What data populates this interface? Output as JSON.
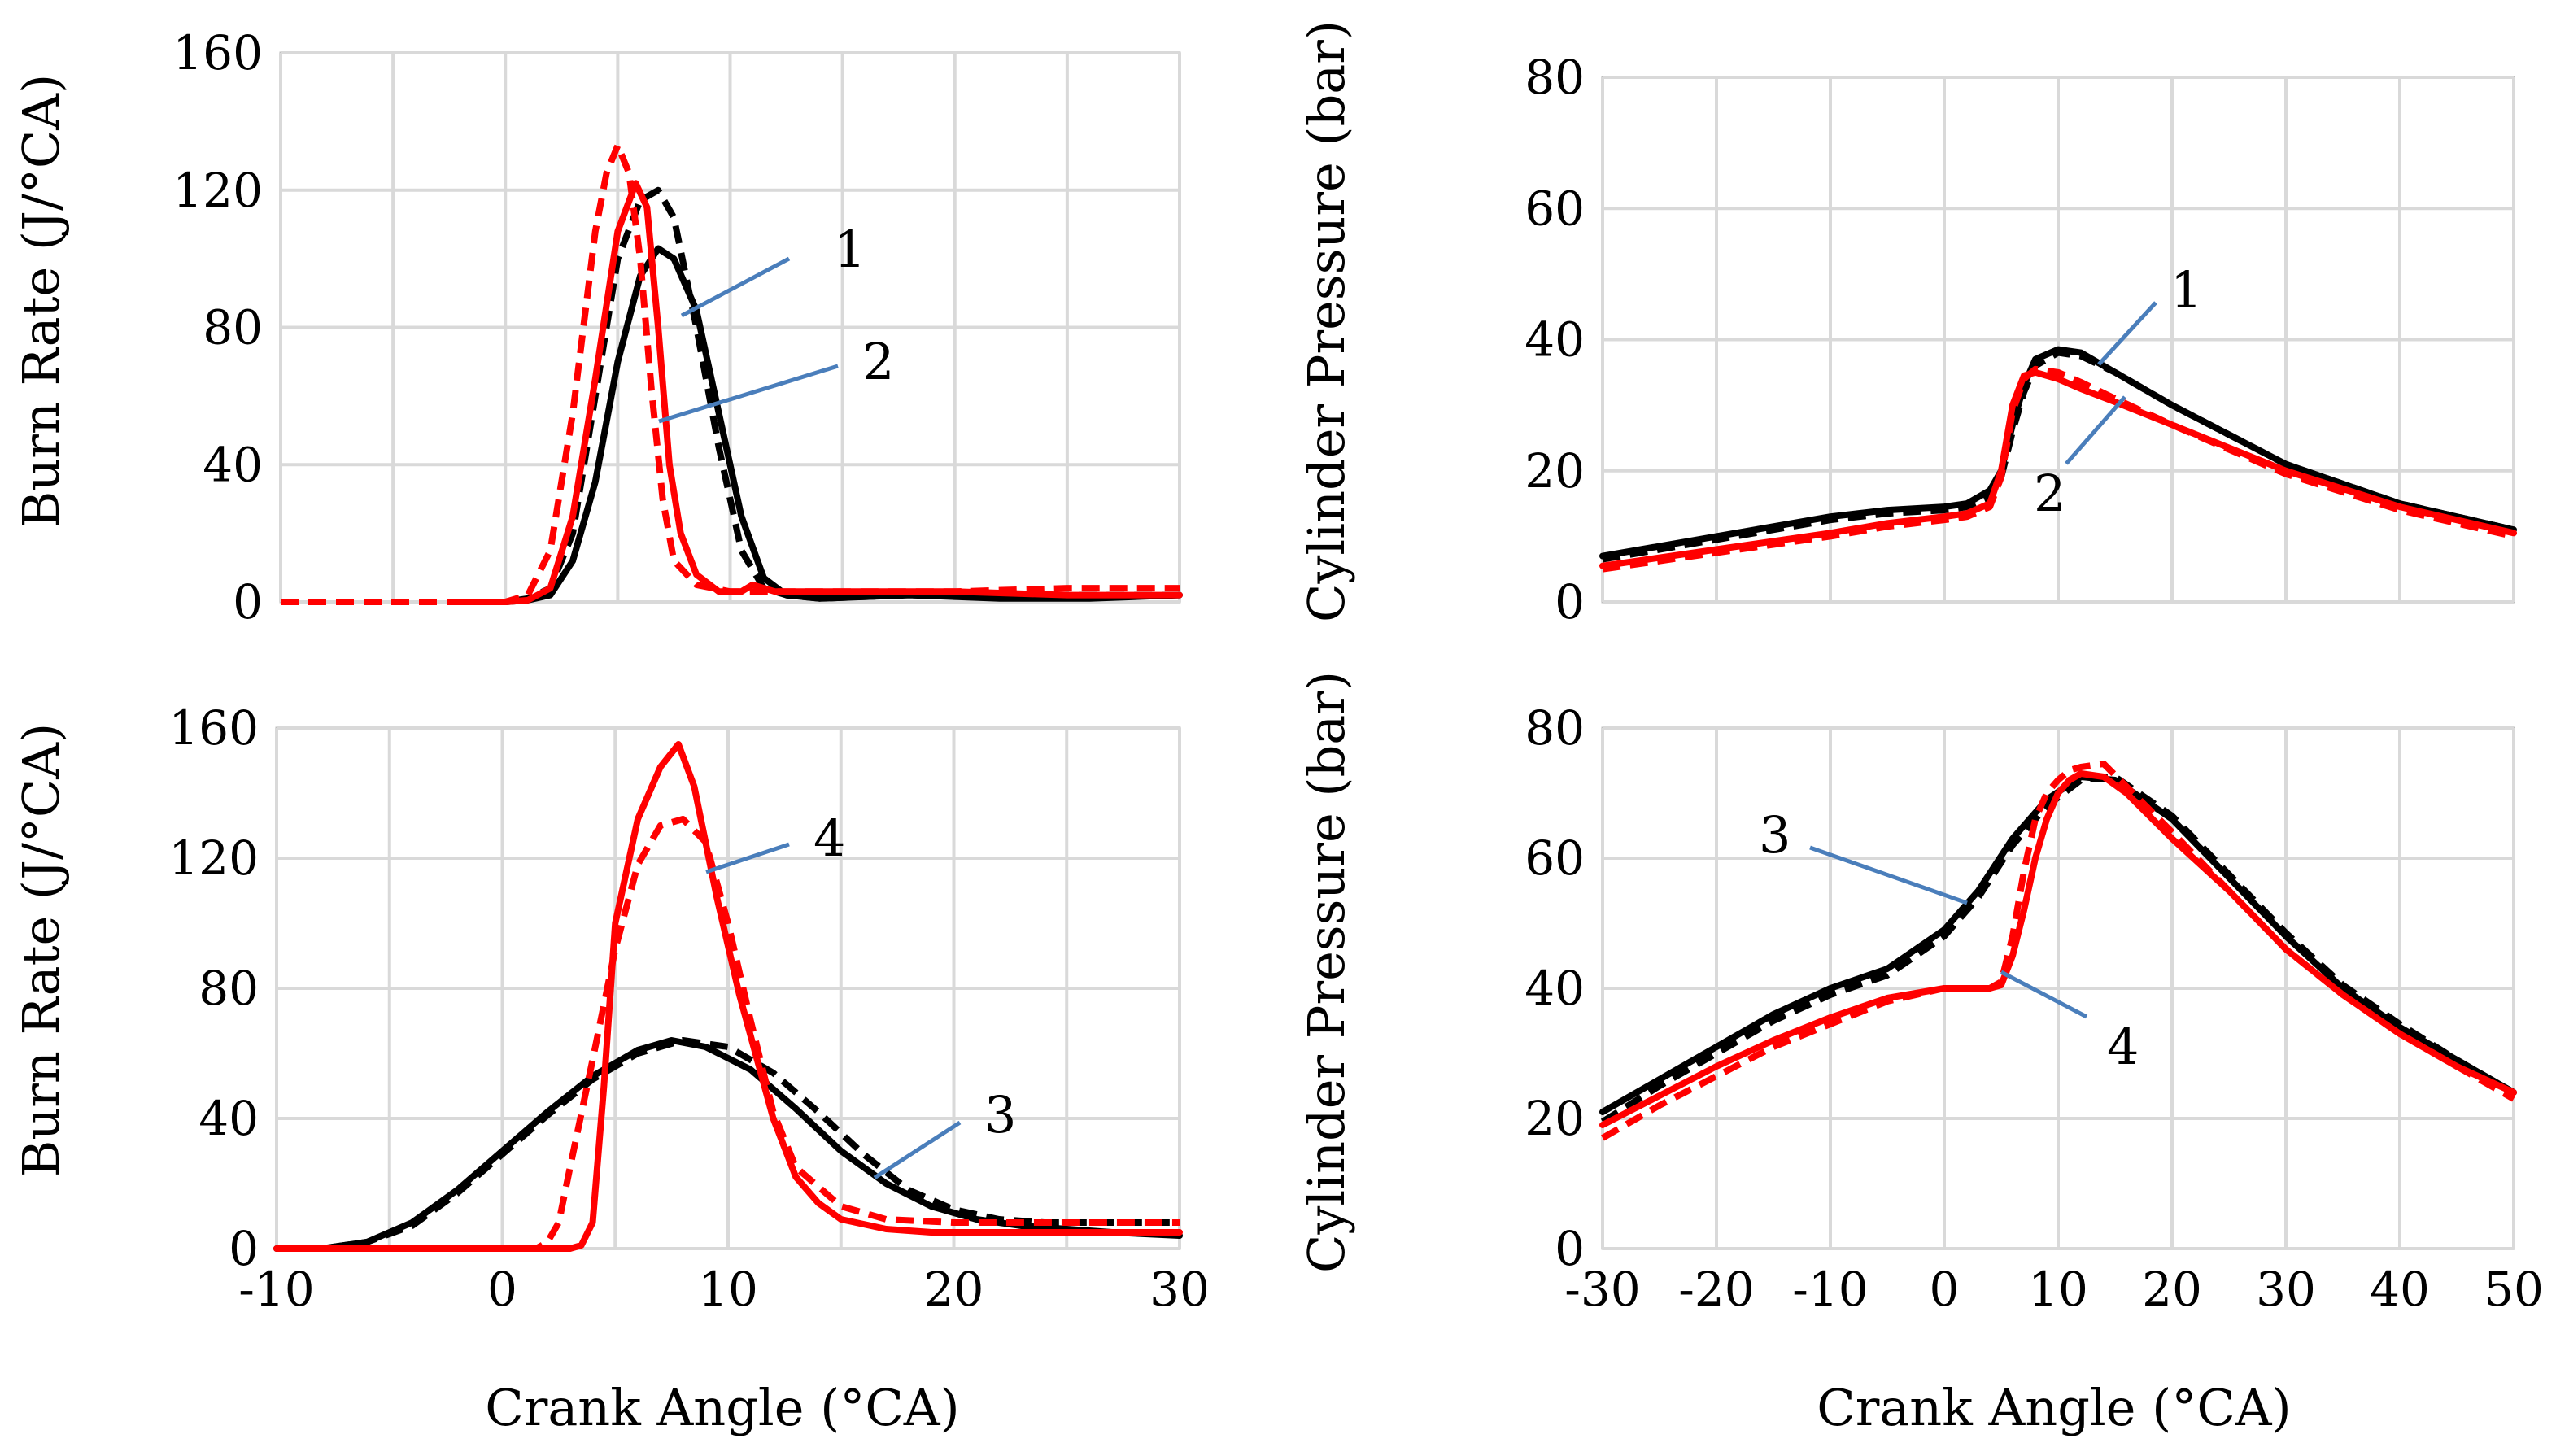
{
  "chart_data": [
    {
      "type": "line",
      "panel": "top-left",
      "xlabel": "",
      "ylabel": "Burn Rate (J/°CA)",
      "xlim": [
        -10,
        30
      ],
      "ylim": [
        0,
        160
      ],
      "xticks": [],
      "yticks": [
        "0",
        "40",
        "80",
        "120",
        "160"
      ],
      "grid": true,
      "series": [
        {
          "color": "#000000",
          "dash": "solid",
          "x": [
            -2,
            0,
            1,
            2,
            3,
            4,
            5,
            6,
            6.8,
            7.5,
            8.5,
            9.5,
            10.5,
            11.5,
            12.5,
            14,
            18,
            22,
            26,
            30
          ],
          "y": [
            0,
            0,
            0.5,
            2,
            12,
            35,
            70,
            95,
            103,
            100,
            85,
            55,
            25,
            7,
            2,
            1,
            2,
            1,
            1,
            2
          ]
        },
        {
          "color": "#000000",
          "dash": "dashed",
          "x": [
            -2,
            0,
            1,
            2,
            3,
            4,
            5,
            6,
            6.8,
            7.5,
            8.5,
            9.5,
            10.5,
            11.5,
            12.5,
            14,
            18,
            22,
            26,
            30
          ],
          "y": [
            0,
            0,
            1,
            4,
            20,
            60,
            100,
            117,
            120,
            112,
            80,
            45,
            15,
            4,
            2,
            1,
            2,
            2,
            2,
            2
          ]
        },
        {
          "color": "#ff0000",
          "dash": "solid",
          "x": [
            -2,
            0,
            1,
            2,
            3,
            4,
            5,
            5.8,
            6.3,
            6.8,
            7.3,
            7.8,
            8.5,
            9.5,
            10.5,
            11,
            12,
            15,
            20,
            25,
            30
          ],
          "y": [
            0,
            0,
            0.5,
            4,
            25,
            65,
            108,
            122,
            115,
            80,
            40,
            20,
            8,
            3,
            3,
            5,
            3,
            3,
            3,
            2,
            2
          ]
        },
        {
          "color": "#ff0000",
          "dash": "dashed",
          "x": [
            -10,
            -2,
            0,
            1,
            2,
            3,
            4,
            4.5,
            5,
            5.5,
            6,
            6.5,
            7,
            7.5,
            8.5,
            10,
            15,
            20,
            25,
            30
          ],
          "y": [
            0,
            0,
            0,
            2,
            15,
            55,
            108,
            125,
            133,
            125,
            100,
            62,
            30,
            12,
            5,
            3,
            3,
            3,
            4,
            4
          ]
        }
      ],
      "annotations": [
        "1",
        "2"
      ]
    },
    {
      "type": "line",
      "panel": "top-right",
      "xlabel": "",
      "ylabel": "Cylinder Pressure (bar)",
      "xlim": [
        -30,
        50
      ],
      "ylim": [
        0,
        80
      ],
      "xticks": [],
      "yticks": [
        "0",
        "20",
        "40",
        "60",
        "80"
      ],
      "grid": true,
      "series": [
        {
          "color": "#000000",
          "dash": "solid",
          "x": [
            -30,
            -20,
            -10,
            -5,
            0,
            2,
            4,
            5,
            6,
            7,
            8,
            10,
            12,
            15,
            20,
            30,
            40,
            50
          ],
          "y": [
            7,
            10,
            13,
            14,
            14.5,
            15,
            17,
            20,
            27,
            33,
            37,
            38.5,
            38,
            35,
            30,
            21,
            15,
            11
          ]
        },
        {
          "color": "#000000",
          "dash": "dashed",
          "x": [
            -30,
            -20,
            -10,
            -5,
            0,
            2,
            4,
            5,
            6,
            7,
            8,
            10,
            12,
            15,
            20,
            30,
            40,
            50
          ],
          "y": [
            6.5,
            9.5,
            12.5,
            13.5,
            14,
            14.5,
            16,
            19,
            26,
            32,
            36,
            38,
            37.5,
            35,
            30,
            21,
            15,
            11
          ]
        },
        {
          "color": "#ff0000",
          "dash": "solid",
          "x": [
            -30,
            -20,
            -10,
            -5,
            0,
            2,
            4,
            5,
            6,
            7,
            8,
            10,
            12,
            15,
            20,
            30,
            40,
            50
          ],
          "y": [
            5.5,
            8,
            10.5,
            12,
            13,
            13.5,
            15,
            20,
            30,
            34.5,
            35,
            34,
            32.5,
            30.5,
            27,
            20,
            14.5,
            10.5
          ]
        },
        {
          "color": "#ff0000",
          "dash": "dashed",
          "x": [
            -30,
            -20,
            -10,
            -5,
            0,
            2,
            4,
            5,
            6,
            7,
            8,
            10,
            12,
            15,
            20,
            30,
            40,
            50
          ],
          "y": [
            5,
            7.5,
            10,
            11.5,
            12.5,
            13,
            14.5,
            19,
            29,
            34,
            35.5,
            35,
            33.5,
            31,
            27,
            19.5,
            14,
            10
          ]
        }
      ],
      "annotations": [
        "1",
        "2"
      ]
    },
    {
      "type": "line",
      "panel": "bottom-left",
      "xlabel": "Crank Angle (°CA)",
      "ylabel": "Burn Rate (J/°CA)",
      "xlim": [
        -10,
        30
      ],
      "ylim": [
        0,
        160
      ],
      "xticks": [
        "-10",
        "0",
        "10",
        "20",
        "30"
      ],
      "yticks": [
        "0",
        "40",
        "80",
        "120",
        "160"
      ],
      "grid": true,
      "series": [
        {
          "color": "#000000",
          "dash": "solid",
          "x": [
            -10,
            -8,
            -6,
            -4,
            -2,
            0,
            2,
            4,
            6,
            7.5,
            9,
            11,
            13,
            15,
            17,
            19,
            21,
            23,
            25,
            27,
            30
          ],
          "y": [
            0,
            0,
            2,
            8,
            18,
            30,
            42,
            53,
            61,
            64,
            62,
            55,
            43,
            30,
            20,
            13,
            9,
            7,
            6,
            5,
            4
          ]
        },
        {
          "color": "#000000",
          "dash": "dashed",
          "x": [
            -10,
            -8,
            -6,
            -4,
            -2,
            0,
            2,
            4,
            6,
            8,
            10,
            12,
            14,
            16,
            18,
            20,
            22,
            24,
            26,
            28,
            30
          ],
          "y": [
            0,
            0,
            2,
            7,
            17,
            29,
            41,
            52,
            60,
            64,
            62,
            54,
            42,
            29,
            18,
            12,
            9,
            8,
            8,
            8,
            8
          ]
        },
        {
          "color": "#ff0000",
          "dash": "solid",
          "x": [
            -10,
            2,
            3,
            3.5,
            4,
            4.5,
            5,
            6,
            7,
            7.8,
            8.5,
            9.5,
            10.5,
            12,
            13,
            14,
            15,
            17,
            19,
            22,
            25,
            30
          ],
          "y": [
            0,
            0,
            0,
            1,
            8,
            50,
            100,
            132,
            148,
            155,
            142,
            108,
            78,
            40,
            22,
            14,
            9,
            6,
            5,
            5,
            5,
            5
          ]
        },
        {
          "color": "#ff0000",
          "dash": "dashed",
          "x": [
            -10,
            -6,
            0,
            1.5,
            2,
            2.5,
            3,
            4,
            5,
            6,
            7,
            8,
            9,
            10,
            11,
            12,
            13,
            15,
            17,
            20,
            25,
            30
          ],
          "y": [
            0,
            0,
            0,
            0,
            2,
            8,
            25,
            58,
            92,
            118,
            130,
            132,
            125,
            100,
            70,
            42,
            25,
            13,
            9,
            8,
            8,
            8
          ]
        }
      ],
      "annotations": [
        "3",
        "4"
      ]
    },
    {
      "type": "line",
      "panel": "bottom-right",
      "xlabel": "Crank Angle (°CA)",
      "ylabel": "Cylinder Pressure (bar)",
      "xlim": [
        -30,
        50
      ],
      "ylim": [
        0,
        80
      ],
      "xticks": [
        "-30",
        "-20",
        "-10",
        "0",
        "10",
        "20",
        "30",
        "40",
        "50"
      ],
      "yticks": [
        "0",
        "20",
        "40",
        "60",
        "80"
      ],
      "grid": true,
      "series": [
        {
          "color": "#000000",
          "dash": "solid",
          "x": [
            -30,
            -25,
            -20,
            -15,
            -10,
            -5,
            0,
            3,
            6,
            9,
            12,
            15,
            20,
            25,
            30,
            35,
            40,
            45,
            50
          ],
          "y": [
            21,
            26,
            31,
            36,
            40,
            43,
            49,
            55,
            63,
            69,
            72.5,
            72,
            66,
            57,
            48,
            40,
            34,
            29,
            24
          ]
        },
        {
          "color": "#000000",
          "dash": "dashed",
          "x": [
            -30,
            -25,
            -20,
            -15,
            -10,
            -5,
            0,
            3,
            6,
            9,
            12,
            15,
            20,
            25,
            30,
            35,
            40,
            45,
            50
          ],
          "y": [
            19.5,
            25,
            30,
            35,
            39,
            42,
            48,
            54,
            62,
            68,
            72,
            72.5,
            66.5,
            57.5,
            48.5,
            40.5,
            34.5,
            29,
            24
          ]
        },
        {
          "color": "#ff0000",
          "dash": "solid",
          "x": [
            -30,
            -25,
            -20,
            -15,
            -10,
            -5,
            0,
            2,
            4,
            5,
            6,
            7,
            8,
            9,
            10,
            11,
            12,
            14,
            16,
            20,
            25,
            30,
            35,
            40,
            45,
            50
          ],
          "y": [
            19,
            23.5,
            28,
            32,
            35.5,
            38.5,
            40,
            40,
            40,
            40.5,
            45,
            52,
            60,
            66,
            70,
            72,
            73,
            72.5,
            70,
            63,
            55,
            46,
            39,
            33,
            28,
            24
          ]
        },
        {
          "color": "#ff0000",
          "dash": "dashed",
          "x": [
            -30,
            -25,
            -20,
            -15,
            -10,
            -5,
            0,
            2,
            4,
            5,
            6,
            7,
            8,
            9,
            10,
            11,
            12,
            14,
            16,
            20,
            25,
            30,
            35,
            40,
            45,
            50
          ],
          "y": [
            17,
            22,
            26.5,
            31,
            34.5,
            38,
            40,
            40,
            40,
            41,
            48,
            58,
            66,
            70,
            72,
            73.5,
            74,
            74.5,
            71,
            64,
            55,
            46,
            39,
            33,
            28,
            23
          ]
        }
      ],
      "annotations": [
        "3",
        "4"
      ]
    }
  ]
}
